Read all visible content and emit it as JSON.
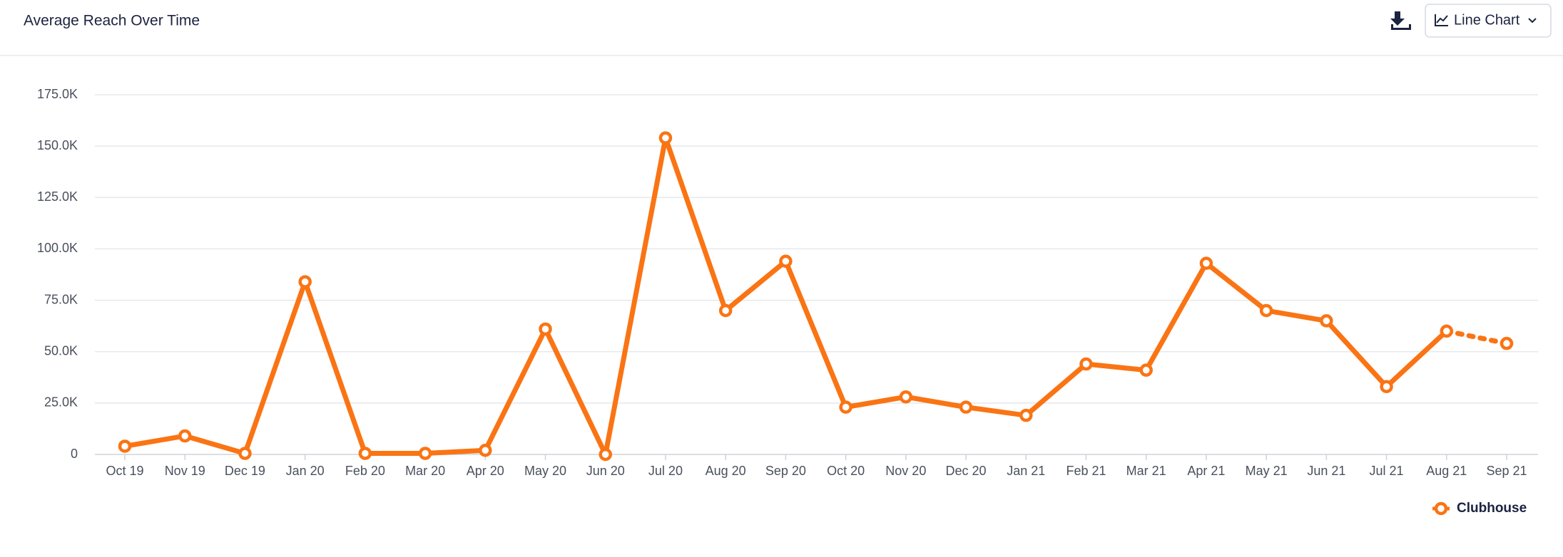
{
  "header": {
    "view_selector": "Line Chart"
  },
  "chart_data": {
    "type": "line",
    "title": "Average Reach Over Time",
    "categories": [
      "Oct 19",
      "Nov 19",
      "Dec 19",
      "Jan 20",
      "Feb 20",
      "Mar 20",
      "Apr 20",
      "May 20",
      "Jun 20",
      "Jul 20",
      "Aug 20",
      "Sep 20",
      "Oct 20",
      "Nov 20",
      "Dec 20",
      "Jan 21",
      "Feb 21",
      "Mar 21",
      "Apr 21",
      "May 21",
      "Jun 21",
      "Jul 21",
      "Aug 21",
      "Sep 21"
    ],
    "series": [
      {
        "name": "Clubhouse",
        "color": "#fa7414",
        "values": [
          4000,
          9000,
          500,
          84000,
          500,
          500,
          2000,
          61000,
          0,
          154000,
          70000,
          94000,
          23000,
          28000,
          23000,
          19000,
          44000,
          41000,
          93000,
          70000,
          65000,
          33000,
          60000,
          54000
        ]
      }
    ],
    "dashed_last_segment": true,
    "ylim": [
      0,
      175000
    ],
    "yticks": [
      0,
      {
        "value": 25000,
        "label": "25.0K"
      },
      {
        "value": 50000,
        "label": "50.0K"
      },
      {
        "value": 75000,
        "label": "75.0K"
      },
      {
        "value": 100000,
        "label": "100.0K"
      },
      {
        "value": 125000,
        "label": "125.0K"
      },
      {
        "value": 150000,
        "label": "150.0K"
      },
      {
        "value": 175000,
        "label": "175.0K"
      }
    ],
    "grid": true,
    "legend": "bottom-right"
  }
}
